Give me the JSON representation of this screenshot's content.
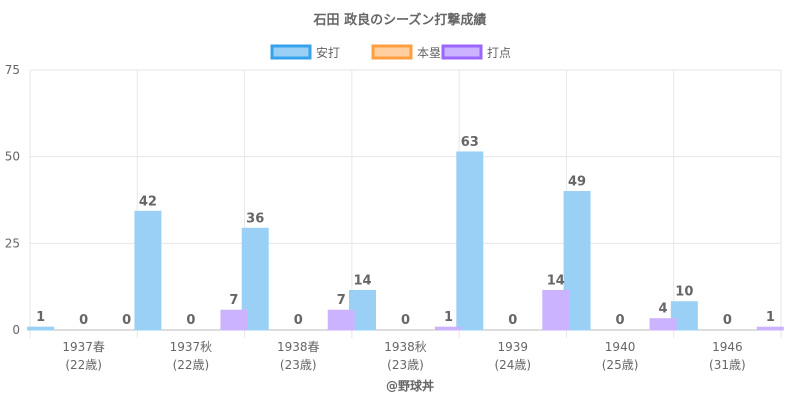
{
  "chart_data": {
    "type": "bar",
    "title": "石田 政良のシーズン打撃成績",
    "categories": [
      "1937春",
      "1937秋",
      "1938春",
      "1938秋",
      "1939",
      "1940",
      "1946"
    ],
    "category_sublabels": [
      "(22歳)",
      "(22歳)",
      "(23歳)",
      "(23歳)",
      "(24歳)",
      "(25歳)",
      "(31歳)"
    ],
    "series": [
      {
        "name": "安打",
        "values": [
          1,
          42,
          36,
          14,
          63,
          49,
          10
        ],
        "data_labels": [
          "1",
          "42",
          "36",
          "14",
          "63",
          "49",
          "10"
        ],
        "fill": "#9ad0f5",
        "border": "#36a2eb"
      },
      {
        "name": "本塁打",
        "values": [
          0,
          0,
          0,
          0,
          0,
          0,
          0
        ],
        "data_labels": [
          "0",
          "0",
          "0",
          "0",
          "0",
          "0",
          "0"
        ],
        "fill": "#ffcf9f",
        "border": "#ff9f40"
      },
      {
        "name": "打点",
        "values": [
          0,
          7,
          7,
          1,
          14,
          4,
          1
        ],
        "data_labels": [
          "0",
          "7",
          "7",
          "1",
          "14",
          "4",
          "1"
        ],
        "fill": "#ccb3ff",
        "border": "#9966ff"
      }
    ],
    "hidden_scale_max": 92,
    "ylim": [
      0,
      75
    ],
    "yticks": [
      "0",
      "25",
      "50",
      "75"
    ],
    "ytick_values": [
      0,
      25,
      50,
      75
    ],
    "grid": true,
    "legend_position": "top",
    "footer": "@野球丼"
  }
}
